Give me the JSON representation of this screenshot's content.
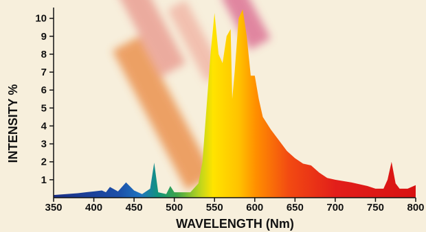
{
  "chart_data": {
    "type": "area",
    "xlabel": "WAVELENGTH (Nm)",
    "ylabel": "INTENSITY %",
    "x": [
      350,
      380,
      400,
      410,
      415,
      420,
      430,
      440,
      450,
      460,
      470,
      475,
      480,
      490,
      495,
      500,
      510,
      520,
      530,
      535,
      540,
      545,
      550,
      555,
      560,
      565,
      570,
      572,
      575,
      580,
      585,
      590,
      595,
      600,
      605,
      610,
      620,
      630,
      640,
      650,
      660,
      670,
      680,
      690,
      700,
      720,
      740,
      750,
      760,
      765,
      770,
      775,
      780,
      790,
      800
    ],
    "values": [
      0.15,
      0.25,
      0.35,
      0.4,
      0.3,
      0.6,
      0.35,
      0.85,
      0.4,
      0.2,
      0.5,
      1.95,
      0.3,
      0.2,
      0.65,
      0.3,
      0.3,
      0.3,
      0.8,
      2,
      5,
      8,
      10.3,
      8,
      7.5,
      9,
      9.4,
      5.5,
      7,
      10,
      10.5,
      9,
      6.8,
      6.8,
      5.5,
      4.5,
      3.8,
      3.2,
      2.6,
      2.2,
      1.9,
      1.8,
      1.4,
      1.1,
      1.0,
      0.85,
      0.65,
      0.5,
      0.5,
      1.0,
      2.0,
      0.8,
      0.5,
      0.5,
      0.7
    ],
    "xlim": [
      350,
      800
    ],
    "ylim": [
      0,
      10.6
    ],
    "xticks": [
      350,
      400,
      450,
      500,
      550,
      600,
      650,
      700,
      750,
      800
    ],
    "yticks": [
      1,
      2,
      3,
      4,
      5,
      6,
      7,
      8,
      9,
      10
    ]
  }
}
